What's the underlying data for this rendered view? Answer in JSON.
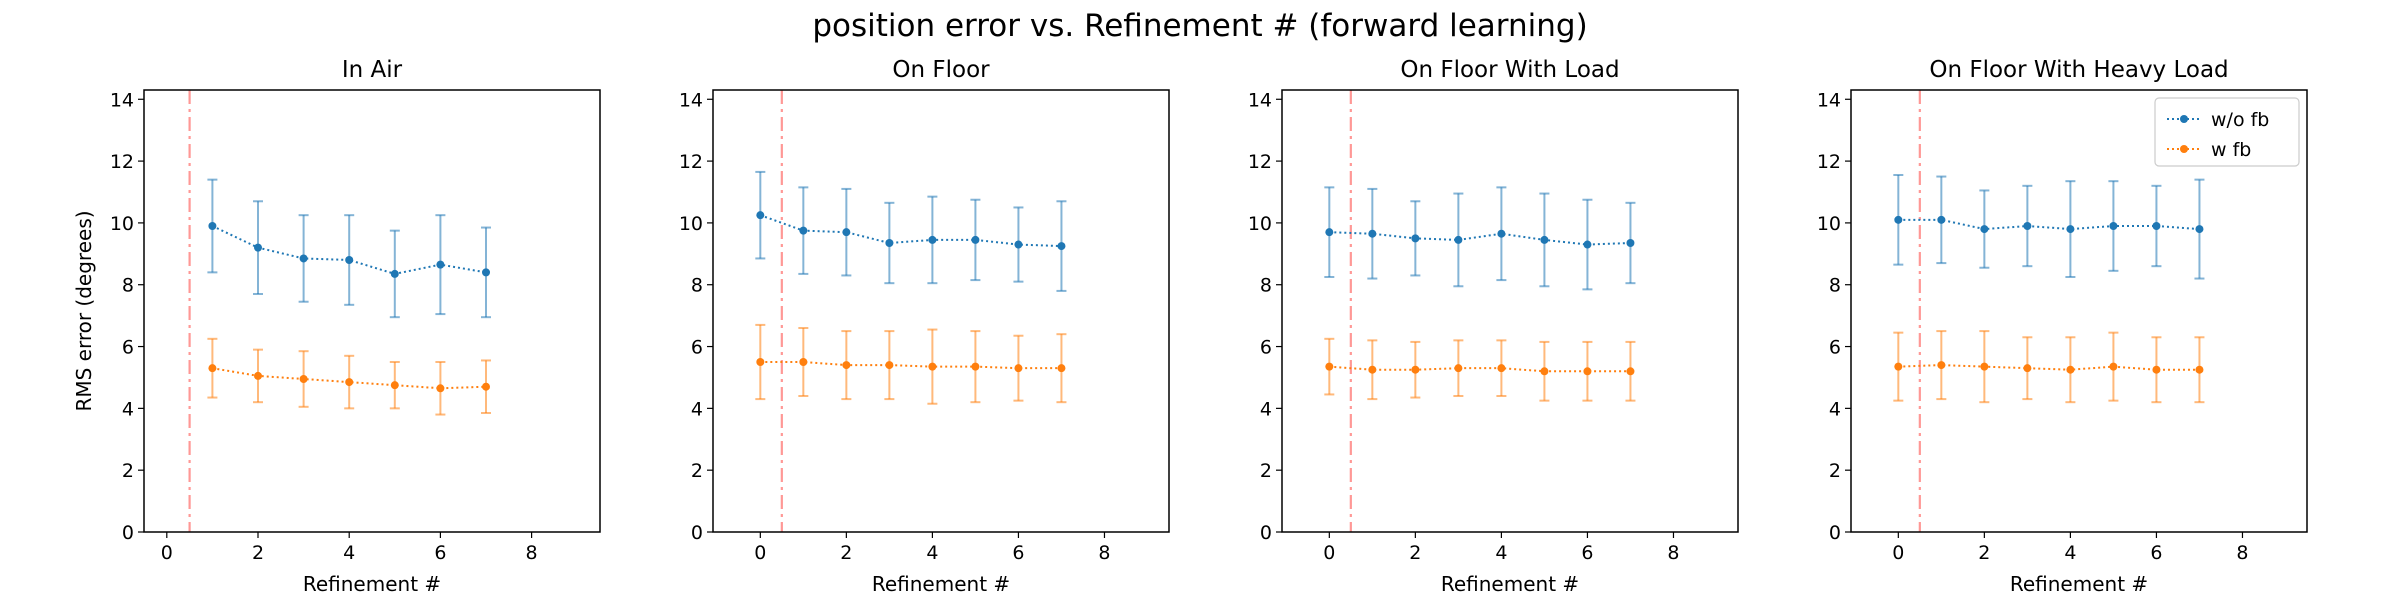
{
  "figure_title": "position error vs. Refinement # (forward learning)",
  "colors": {
    "wo_fb": "#1f77b4",
    "w_fb": "#ff7f0e",
    "vline": "#ff9896",
    "axes": "#000000"
  },
  "legend": {
    "placement": "top-right",
    "panel": 3,
    "entries": [
      "w/o fb",
      "w fb"
    ]
  },
  "chart_data": [
    {
      "type": "line",
      "title": "In Air",
      "xlabel": "Refinement #",
      "ylabel": "RMS error (degrees)",
      "xlim": [
        -0.5,
        9.5
      ],
      "ylim": [
        0,
        14.3
      ],
      "xticks": [
        0,
        2,
        4,
        6,
        8
      ],
      "yticks": [
        0,
        2,
        4,
        6,
        8,
        10,
        12,
        14
      ],
      "grid": false,
      "vline_x": 0.5,
      "series": [
        {
          "name": "w/o fb",
          "x": [
            1,
            2,
            3,
            4,
            5,
            6,
            7
          ],
          "y": [
            9.9,
            9.2,
            8.85,
            8.8,
            8.35,
            8.65,
            8.4
          ],
          "err": [
            1.5,
            1.5,
            1.4,
            1.45,
            1.4,
            1.6,
            1.45
          ]
        },
        {
          "name": "w fb",
          "x": [
            1,
            2,
            3,
            4,
            5,
            6,
            7
          ],
          "y": [
            5.3,
            5.05,
            4.95,
            4.85,
            4.75,
            4.65,
            4.7
          ],
          "err": [
            0.95,
            0.85,
            0.9,
            0.85,
            0.75,
            0.85,
            0.85
          ]
        }
      ]
    },
    {
      "type": "line",
      "title": "On Floor",
      "xlabel": "Refinement #",
      "ylabel": "",
      "xlim": [
        -1.1,
        9.5
      ],
      "ylim": [
        0,
        14.3
      ],
      "xticks": [
        0,
        2,
        4,
        6,
        8
      ],
      "yticks": [
        0,
        2,
        4,
        6,
        8,
        10,
        12,
        14
      ],
      "grid": false,
      "vline_x": 0.5,
      "series": [
        {
          "name": "w/o fb",
          "x": [
            0,
            1,
            2,
            3,
            4,
            5,
            6,
            7
          ],
          "y": [
            10.25,
            9.75,
            9.7,
            9.35,
            9.45,
            9.45,
            9.3,
            9.25
          ],
          "err": [
            1.4,
            1.4,
            1.4,
            1.3,
            1.4,
            1.3,
            1.2,
            1.45
          ]
        },
        {
          "name": "w fb",
          "x": [
            0,
            1,
            2,
            3,
            4,
            5,
            6,
            7
          ],
          "y": [
            5.5,
            5.5,
            5.4,
            5.4,
            5.35,
            5.35,
            5.3,
            5.3
          ],
          "err": [
            1.2,
            1.1,
            1.1,
            1.1,
            1.2,
            1.15,
            1.05,
            1.1
          ]
        }
      ]
    },
    {
      "type": "line",
      "title": "On Floor With Load",
      "xlabel": "Refinement #",
      "ylabel": "",
      "xlim": [
        -1.1,
        9.5
      ],
      "ylim": [
        0,
        14.3
      ],
      "xticks": [
        0,
        2,
        4,
        6,
        8
      ],
      "yticks": [
        0,
        2,
        4,
        6,
        8,
        10,
        12,
        14
      ],
      "grid": false,
      "vline_x": 0.5,
      "series": [
        {
          "name": "w/o fb",
          "x": [
            0,
            1,
            2,
            3,
            4,
            5,
            6,
            7
          ],
          "y": [
            9.7,
            9.65,
            9.5,
            9.45,
            9.65,
            9.45,
            9.3,
            9.35
          ],
          "err": [
            1.45,
            1.45,
            1.2,
            1.5,
            1.5,
            1.5,
            1.45,
            1.3
          ]
        },
        {
          "name": "w fb",
          "x": [
            0,
            1,
            2,
            3,
            4,
            5,
            6,
            7
          ],
          "y": [
            5.35,
            5.25,
            5.25,
            5.3,
            5.3,
            5.2,
            5.2,
            5.2
          ],
          "err": [
            0.9,
            0.95,
            0.9,
            0.9,
            0.9,
            0.95,
            0.95,
            0.95
          ]
        }
      ]
    },
    {
      "type": "line",
      "title": "On Floor With Heavy Load",
      "xlabel": "Refinement #",
      "ylabel": "",
      "xlim": [
        -1.1,
        9.5
      ],
      "ylim": [
        0,
        14.3
      ],
      "xticks": [
        0,
        2,
        4,
        6,
        8
      ],
      "yticks": [
        0,
        2,
        4,
        6,
        8,
        10,
        12,
        14
      ],
      "grid": false,
      "vline_x": 0.5,
      "series": [
        {
          "name": "w/o fb",
          "x": [
            0,
            1,
            2,
            3,
            4,
            5,
            6,
            7
          ],
          "y": [
            10.1,
            10.1,
            9.8,
            9.9,
            9.8,
            9.9,
            9.9,
            9.8
          ],
          "err": [
            1.45,
            1.4,
            1.25,
            1.3,
            1.55,
            1.45,
            1.3,
            1.6
          ]
        },
        {
          "name": "w fb",
          "x": [
            0,
            1,
            2,
            3,
            4,
            5,
            6,
            7
          ],
          "y": [
            5.35,
            5.4,
            5.35,
            5.3,
            5.25,
            5.35,
            5.25,
            5.25
          ],
          "err": [
            1.1,
            1.1,
            1.15,
            1.0,
            1.05,
            1.1,
            1.05,
            1.05
          ]
        }
      ]
    }
  ]
}
